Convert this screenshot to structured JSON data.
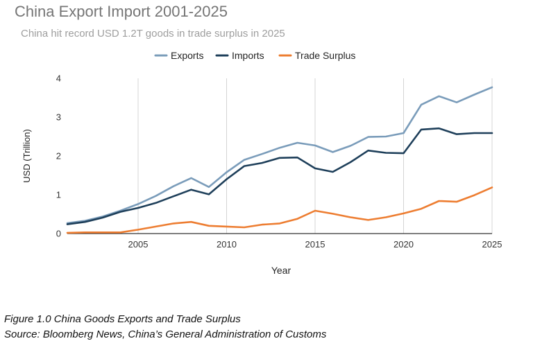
{
  "caption": {
    "figure": "Figure 1.0 China Goods Exports and Trade Surplus",
    "source": "Source: Bloomberg News, China’s General Administration of Customs"
  },
  "chart_data": {
    "type": "line",
    "title": "China Export Import 2001-2025",
    "subtitle": "China hit record USD 1.2T goods in trade surplus in 2025",
    "xlabel": "Year",
    "ylabel": "USD (Trillion)",
    "xlim": [
      2001,
      2025
    ],
    "ylim": [
      0,
      4
    ],
    "xticks": [
      2005,
      2010,
      2015,
      2020,
      2025
    ],
    "yticks": [
      0,
      1,
      2,
      3,
      4
    ],
    "grid": "vertical",
    "legend_position": "top",
    "x": [
      2001,
      2002,
      2003,
      2004,
      2005,
      2006,
      2007,
      2008,
      2009,
      2010,
      2011,
      2012,
      2013,
      2014,
      2015,
      2016,
      2017,
      2018,
      2019,
      2020,
      2021,
      2022,
      2023,
      2024,
      2025
    ],
    "series": [
      {
        "name": "Exports",
        "color": "#7a9cba",
        "values": [
          0.27,
          0.33,
          0.44,
          0.59,
          0.76,
          0.97,
          1.22,
          1.43,
          1.2,
          1.58,
          1.9,
          2.05,
          2.21,
          2.34,
          2.27,
          2.1,
          2.26,
          2.49,
          2.5,
          2.59,
          3.32,
          3.54,
          3.38,
          3.58,
          3.77
        ]
      },
      {
        "name": "Imports",
        "color": "#1e3f5a",
        "values": [
          0.24,
          0.3,
          0.41,
          0.56,
          0.66,
          0.79,
          0.96,
          1.13,
          1.01,
          1.4,
          1.74,
          1.82,
          1.95,
          1.96,
          1.68,
          1.59,
          1.84,
          2.14,
          2.08,
          2.07,
          2.68,
          2.71,
          2.56,
          2.59,
          2.59
        ]
      },
      {
        "name": "Trade Surplus",
        "color": "#ed7d31",
        "values": [
          0.02,
          0.03,
          0.03,
          0.03,
          0.1,
          0.18,
          0.26,
          0.3,
          0.2,
          0.18,
          0.16,
          0.23,
          0.26,
          0.38,
          0.59,
          0.51,
          0.42,
          0.35,
          0.42,
          0.52,
          0.64,
          0.84,
          0.82,
          0.99,
          1.19
        ]
      }
    ]
  }
}
